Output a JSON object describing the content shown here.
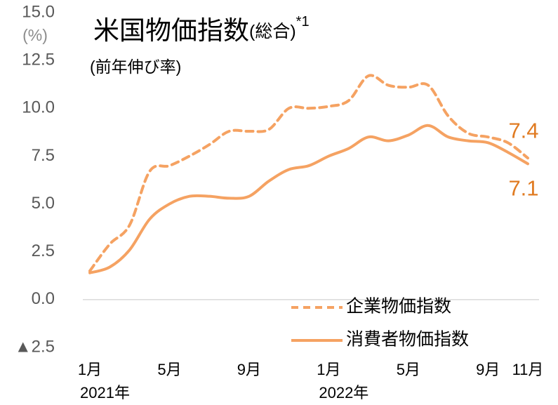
{
  "chart_data": {
    "type": "line",
    "title": "米国物価指数",
    "title_suffix": "(総合)",
    "title_note": "*1",
    "subtitle": "(前年伸び率)",
    "y_unit": "(%)",
    "categories": [
      "1月",
      null,
      null,
      null,
      "5月",
      null,
      null,
      null,
      "9月",
      null,
      null,
      null,
      "1月",
      null,
      null,
      null,
      "5月",
      null,
      null,
      null,
      "9月",
      null,
      "11月"
    ],
    "year_labels": [
      "2021年",
      "2022年"
    ],
    "series": [
      {
        "name": "企業物価指数",
        "color": "#f5a262",
        "dash": true,
        "values": [
          1.5,
          2.9,
          3.9,
          6.7,
          7.0,
          7.5,
          8.1,
          8.8,
          8.8,
          8.9,
          10.0,
          10.0,
          10.1,
          10.4,
          11.7,
          11.2,
          11.1,
          11.2,
          9.6,
          8.7,
          8.5,
          8.2,
          7.4
        ]
      },
      {
        "name": "消費者物価指数",
        "color": "#f5a262",
        "dash": false,
        "values": [
          1.4,
          1.7,
          2.6,
          4.2,
          5.0,
          5.4,
          5.4,
          5.3,
          5.4,
          6.2,
          6.8,
          7.0,
          7.5,
          7.9,
          8.5,
          8.3,
          8.6,
          9.1,
          8.5,
          8.3,
          8.2,
          7.7,
          7.1
        ]
      }
    ],
    "label_color": "#e07b22",
    "ylim": [
      -2.5,
      15
    ],
    "yticks": [
      {
        "value": -2.5,
        "label": "▲2.5"
      },
      {
        "value": 0,
        "label": "0.0"
      },
      {
        "value": 2.5,
        "label": "2.5"
      },
      {
        "value": 5,
        "label": "5.0"
      },
      {
        "value": 7.5,
        "label": "7.5"
      },
      {
        "value": 10,
        "label": "10.0"
      },
      {
        "value": 12.5,
        "label": "12.5"
      },
      {
        "value": 15,
        "label": "15.0"
      }
    ],
    "grid": false,
    "legend": "lower right"
  }
}
